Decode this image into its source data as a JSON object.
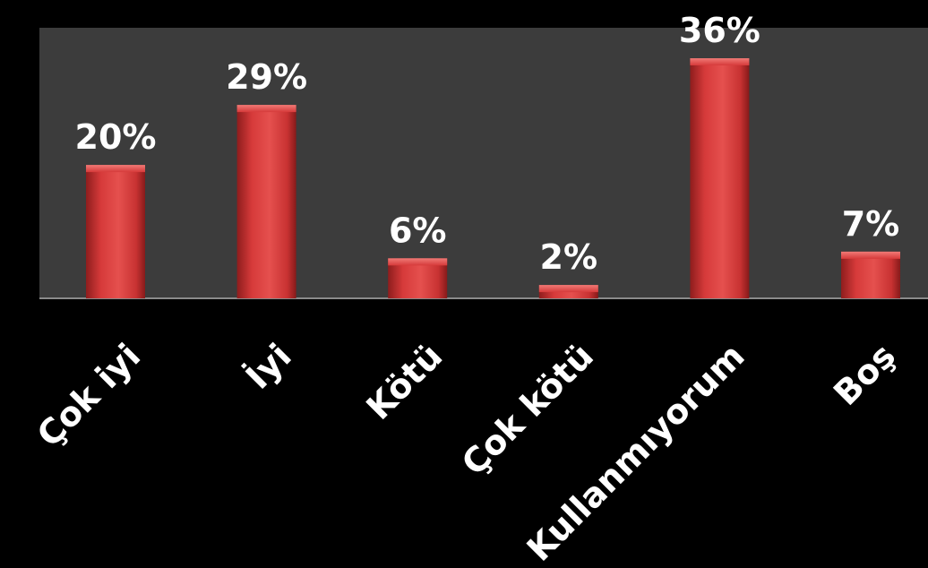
{
  "chart_data": {
    "type": "bar",
    "categories": [
      "Çok iyi",
      "İyi",
      "Kötü",
      "Çok kötü",
      "Kullanmıyorum",
      "Boş"
    ],
    "values": [
      20,
      29,
      6,
      2,
      36,
      7
    ],
    "value_labels": [
      "20%",
      "29%",
      "6%",
      "2%",
      "36%",
      "7%"
    ],
    "title": "",
    "xlabel": "",
    "ylabel": "",
    "ylim": [
      0,
      40
    ],
    "grid": false,
    "legend": "none",
    "colors": {
      "background": "#000000",
      "plot_area": "#3c3c3c",
      "bar": "#d63a3a",
      "text": "#ffffff"
    }
  }
}
